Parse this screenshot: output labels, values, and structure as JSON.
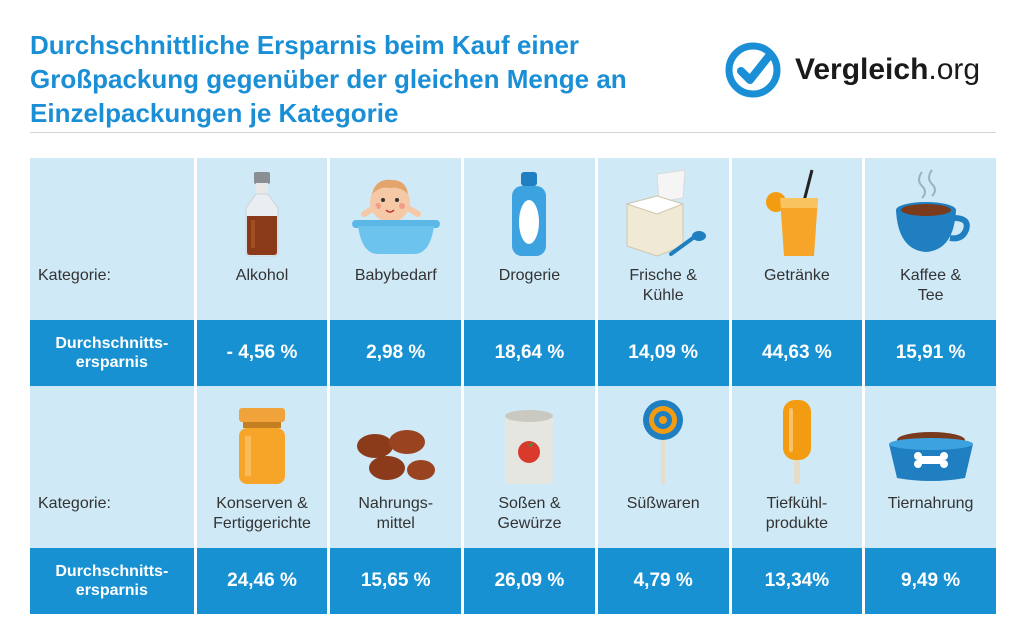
{
  "header": {
    "title_line1": "Durchschnittliche Ersparnis beim Kauf einer",
    "title_line2": "Großpackung gegenüber der gleichen Menge an",
    "title_line3": "Einzelpackungen je Kategorie",
    "logo_bold": "Vergleich",
    "logo_suffix": ".org"
  },
  "colors": {
    "accent": "#1791d2",
    "light": "#cfe9f7"
  },
  "block1": {
    "row_label": "Kategorie:",
    "value_label_line1": "Durchschnitts-",
    "value_label_line2": "ersparnis",
    "items": [
      {
        "name_line1": "Alkohol",
        "name_line2": "",
        "value": "- 4,56 %",
        "icon": "bottle-icon"
      },
      {
        "name_line1": "Babybedarf",
        "name_line2": "",
        "value": "2,98 %",
        "icon": "baby-bath-icon"
      },
      {
        "name_line1": "Drogerie",
        "name_line2": "",
        "value": "18,64 %",
        "icon": "shampoo-bottle-icon"
      },
      {
        "name_line1": "Frische &",
        "name_line2": "Kühle",
        "value": "14,09 %",
        "icon": "yogurt-icon"
      },
      {
        "name_line1": "Getränke",
        "name_line2": "",
        "value": "44,63 %",
        "icon": "juice-glass-icon"
      },
      {
        "name_line1": "Kaffee &",
        "name_line2": "Tee",
        "value": "15,91 %",
        "icon": "coffee-cup-icon"
      }
    ]
  },
  "block2": {
    "row_label": "Kategorie:",
    "value_label_line1": "Durchschnitts-",
    "value_label_line2": "ersparnis",
    "items": [
      {
        "name_line1": "Konserven &",
        "name_line2": "Fertiggerichte",
        "value": "24,46 %",
        "icon": "jar-icon"
      },
      {
        "name_line1": "Nahrungs-",
        "name_line2": "mittel",
        "value": "15,65 %",
        "icon": "potatoes-icon"
      },
      {
        "name_line1": "Soßen &",
        "name_line2": "Gewürze",
        "value": "26,09 %",
        "icon": "tomato-can-icon"
      },
      {
        "name_line1": "Süßwaren",
        "name_line2": "",
        "value": "4,79 %",
        "icon": "lollipop-icon"
      },
      {
        "name_line1": "Tiefkühl-",
        "name_line2": "produkte",
        "value": "13,34%",
        "icon": "popsicle-icon"
      },
      {
        "name_line1": "Tiernahrung",
        "name_line2": "",
        "value": "9,49 %",
        "icon": "pet-bowl-icon"
      }
    ]
  }
}
